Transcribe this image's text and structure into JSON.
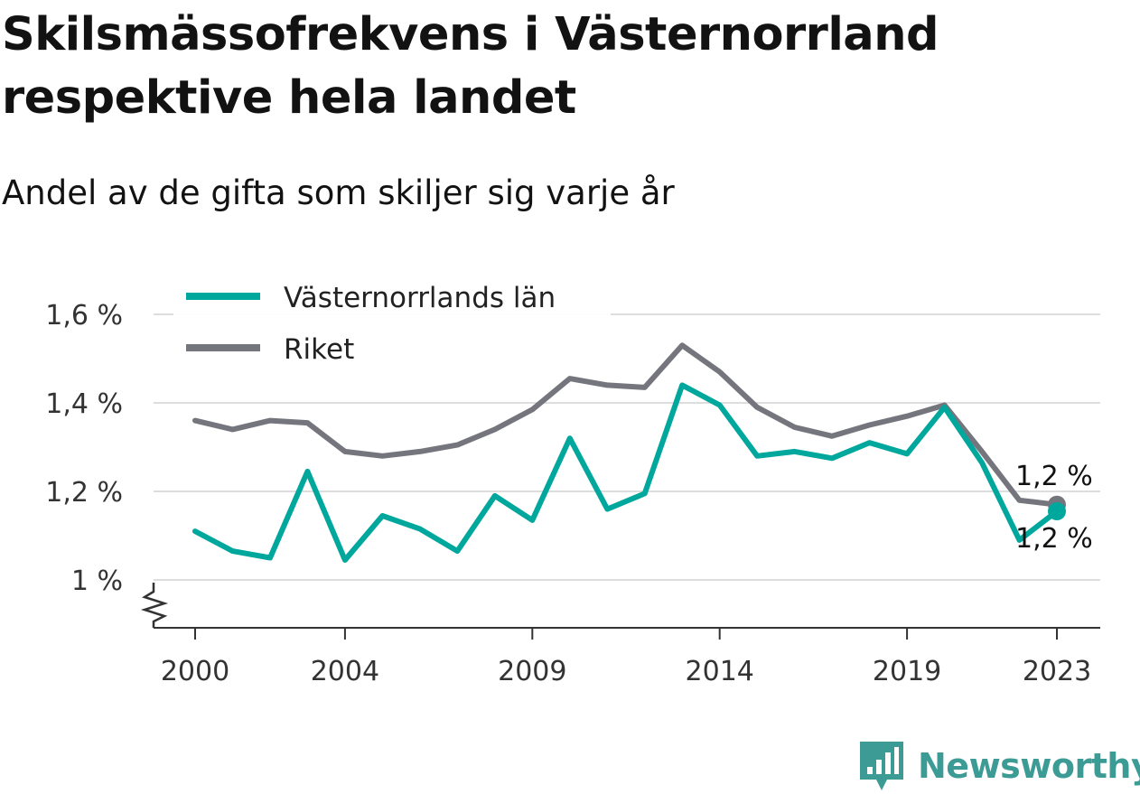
{
  "title": "Skilsmässofrekvens i Västernorrland respektive hela landet",
  "subtitle": "Andel av de gifta som skiljer sig varje år",
  "brand": {
    "name": "Newsworthy",
    "color": "#3d9b96",
    "icon": "bar-chart-speech-bubble-icon"
  },
  "colors": {
    "series1": "#00a79d",
    "series2": "#75757d",
    "grid": "#dddddd",
    "axis": "#333333"
  },
  "chart_data": {
    "type": "line",
    "x_ticks": [
      2000,
      2004,
      2009,
      2014,
      2019,
      2023
    ],
    "x_tick_labels": [
      "2000",
      "2004",
      "2009",
      "2014",
      "2019",
      "2023"
    ],
    "y_ticks": [
      1.0,
      1.2,
      1.4,
      1.6
    ],
    "y_tick_labels": [
      "1 %",
      "1,2 %",
      "1,4 %",
      "1,6 %"
    ],
    "xlim": [
      1999.5,
      2024.2
    ],
    "ylim": [
      0.89,
      1.6
    ],
    "grid": "horizontal",
    "legend": "top-left",
    "axis_break": "y",
    "x": [
      2000,
      2001,
      2002,
      2003,
      2004,
      2005,
      2006,
      2007,
      2008,
      2009,
      2010,
      2011,
      2012,
      2013,
      2014,
      2015,
      2016,
      2017,
      2018,
      2019,
      2020,
      2021,
      2022,
      2023
    ],
    "series": [
      {
        "name": "Västernorrlands län",
        "color": "#00a79d",
        "end_label": "1,2 %",
        "values": [
          1.11,
          1.065,
          1.05,
          1.245,
          1.045,
          1.145,
          1.115,
          1.065,
          1.19,
          1.135,
          1.32,
          1.16,
          1.195,
          1.44,
          1.395,
          1.28,
          1.29,
          1.275,
          1.31,
          1.285,
          1.39,
          1.265,
          1.09,
          1.155
        ]
      },
      {
        "name": "Riket",
        "color": "#75757d",
        "end_label": "1,2 %",
        "values": [
          1.36,
          1.34,
          1.36,
          1.355,
          1.29,
          1.28,
          1.29,
          1.305,
          1.34,
          1.385,
          1.455,
          1.44,
          1.435,
          1.53,
          1.47,
          1.39,
          1.345,
          1.325,
          1.35,
          1.37,
          1.395,
          1.29,
          1.18,
          1.17
        ]
      }
    ]
  }
}
